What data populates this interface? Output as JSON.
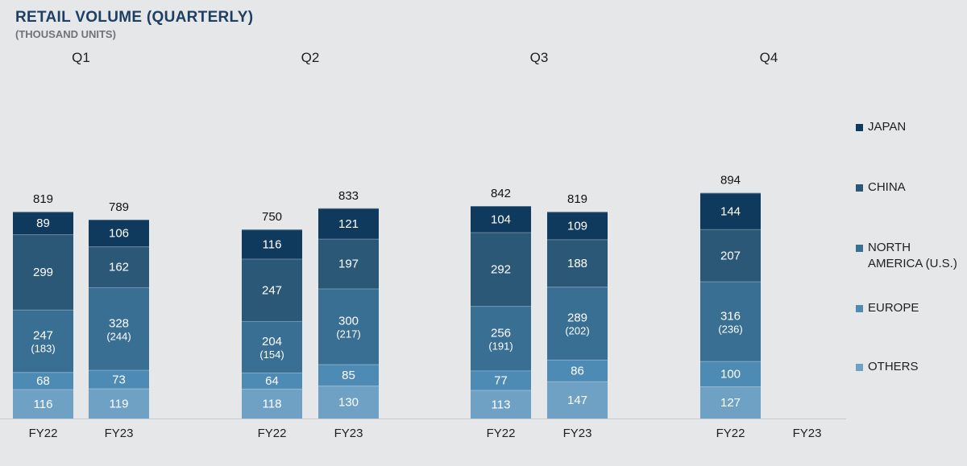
{
  "title": "RETAIL VOLUME (QUARTERLY)",
  "subtitle": "(THOUSAND UNITS)",
  "chart_data": {
    "type": "bar",
    "stacked": true,
    "title": "RETAIL VOLUME (QUARTERLY)",
    "subtitle": "(THOUSAND UNITS)",
    "quarters": [
      "Q1",
      "Q2",
      "Q3",
      "Q4"
    ],
    "fiscal_years": [
      "FY22",
      "FY23"
    ],
    "stack_order_bottom_to_top": [
      "OTHERS",
      "EUROPE",
      "NORTH AMERICA (U.S.)",
      "CHINA",
      "JAPAN"
    ],
    "legend": [
      "JAPAN",
      "CHINA",
      "NORTH AMERICA (U.S.)",
      "EUROPE",
      "OTHERS"
    ],
    "legend_position": "right",
    "colors": {
      "JAPAN": "#0f3a5e",
      "CHINA": "#2c5878",
      "NORTH AMERICA (U.S.)": "#3a6f94",
      "EUROPE": "#4e8bb4",
      "OTHERS": "#6ea1c4"
    },
    "bars": [
      {
        "quarter": "Q1",
        "fy": "FY22",
        "total": "819",
        "segments": {
          "OTHERS": "116",
          "EUROPE": "68",
          "NORTH AMERICA (U.S.)": "247",
          "US": "(183)",
          "CHINA": "299",
          "JAPAN": "89"
        }
      },
      {
        "quarter": "Q1",
        "fy": "FY23",
        "total": "789",
        "segments": {
          "OTHERS": "119",
          "EUROPE": "73",
          "NORTH AMERICA (U.S.)": "328",
          "US": "(244)",
          "CHINA": "162",
          "JAPAN": "106"
        }
      },
      {
        "quarter": "Q2",
        "fy": "FY22",
        "total": "750",
        "segments": {
          "OTHERS": "118",
          "EUROPE": "64",
          "NORTH AMERICA (U.S.)": "204",
          "US": "(154)",
          "CHINA": "247",
          "JAPAN": "116"
        }
      },
      {
        "quarter": "Q2",
        "fy": "FY23",
        "total": "833",
        "segments": {
          "OTHERS": "130",
          "EUROPE": "85",
          "NORTH AMERICA (U.S.)": "300",
          "US": "(217)",
          "CHINA": "197",
          "JAPAN": "121"
        }
      },
      {
        "quarter": "Q3",
        "fy": "FY22",
        "total": "842",
        "segments": {
          "OTHERS": "113",
          "EUROPE": "77",
          "NORTH AMERICA (U.S.)": "256",
          "US": "(191)",
          "CHINA": "292",
          "JAPAN": "104"
        }
      },
      {
        "quarter": "Q3",
        "fy": "FY23",
        "total": "819",
        "segments": {
          "OTHERS": "147",
          "EUROPE": "86",
          "NORTH AMERICA (U.S.)": "289",
          "US": "(202)",
          "CHINA": "188",
          "JAPAN": "109"
        }
      },
      {
        "quarter": "Q4",
        "fy": "FY22",
        "total": "894",
        "segments": {
          "OTHERS": "127",
          "EUROPE": "100",
          "NORTH AMERICA (U.S.)": "316",
          "US": "(236)",
          "CHINA": "207",
          "JAPAN": "144"
        }
      },
      {
        "quarter": "Q4",
        "fy": "FY23",
        "total": null,
        "segments": null
      }
    ],
    "ylim": [
      0,
      900
    ]
  }
}
